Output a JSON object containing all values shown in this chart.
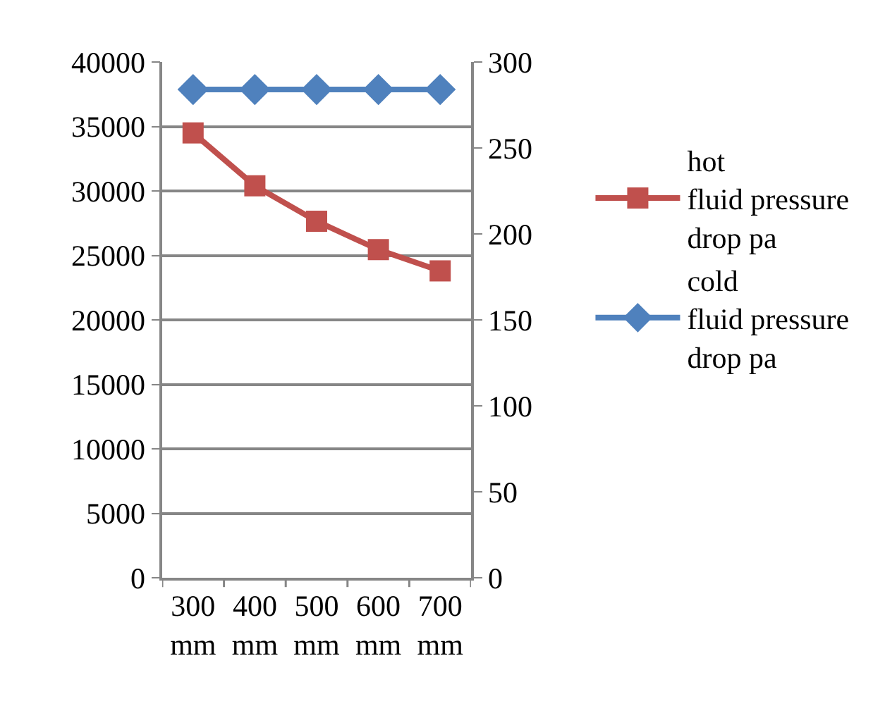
{
  "chart_data": {
    "type": "line",
    "categories": [
      "300 mm",
      "400 mm",
      "500 mm",
      "600 mm",
      "700 mm"
    ],
    "series": [
      {
        "name": "hot fluid pressure drop pa",
        "color": "#c0504d",
        "marker": "square",
        "values": [
          34500,
          30400,
          27650,
          25450,
          23800
        ]
      },
      {
        "name": "cold fluid pressure drop pa",
        "color": "#4f81bd",
        "marker": "diamond",
        "axis": "y2",
        "values": [
          284,
          284,
          284,
          284,
          284
        ]
      }
    ],
    "ylim": [
      0,
      40000
    ],
    "yticks": [
      0,
      5000,
      10000,
      15000,
      20000,
      25000,
      30000,
      35000,
      40000
    ],
    "y2lim": [
      0,
      300
    ],
    "y2ticks": [
      0,
      50,
      100,
      150,
      200,
      250,
      300
    ],
    "grid": "y",
    "legend": "right",
    "line_style": "solid"
  }
}
